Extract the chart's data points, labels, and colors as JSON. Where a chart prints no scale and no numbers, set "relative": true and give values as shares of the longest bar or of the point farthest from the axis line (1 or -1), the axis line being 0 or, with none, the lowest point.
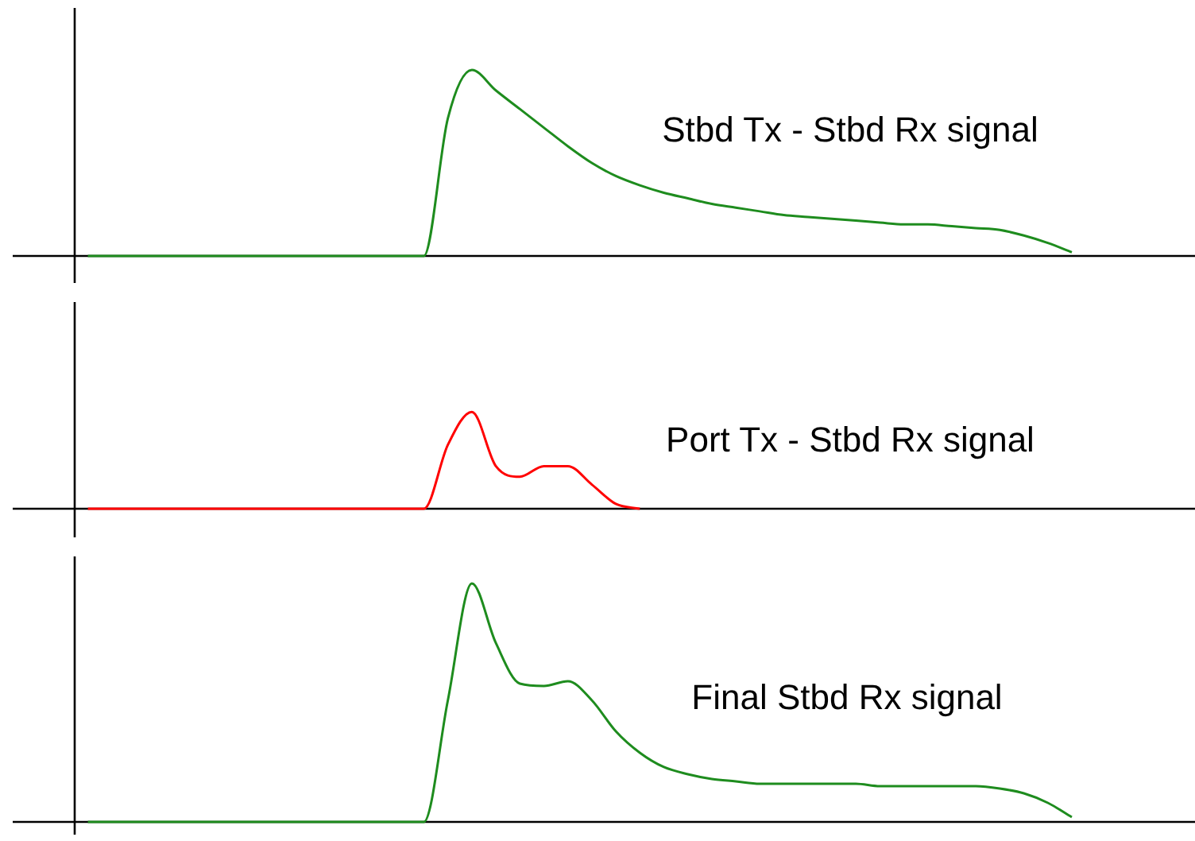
{
  "chart_data": [
    {
      "type": "line",
      "relative": true,
      "annotations": [
        "Stbd Tx - Stbd Rx signal"
      ],
      "categories": [
        null,
        null,
        null,
        null,
        null,
        null,
        null,
        null,
        null,
        null,
        null,
        null,
        null,
        null,
        null,
        null,
        null,
        null,
        null,
        null,
        null,
        null,
        null,
        null,
        null,
        null,
        null,
        null,
        null,
        null,
        null,
        null,
        null,
        null,
        null,
        null,
        null,
        null,
        null,
        null,
        null,
        null,
        null,
        null,
        null,
        null,
        null,
        null,
        null,
        null
      ],
      "series": [
        {
          "color": "#1e8c1e",
          "values": [
            null,
            null,
            null,
            0,
            0,
            0,
            0,
            0,
            0,
            0,
            0,
            0,
            0,
            0,
            0,
            0,
            0,
            0,
            0.74,
            1,
            0.89,
            0.79,
            0.69,
            0.59,
            0.5,
            0.43,
            0.38,
            0.34,
            0.31,
            0.28,
            0.26,
            0.24,
            0.22,
            0.21,
            0.2,
            0.19,
            0.18,
            0.17,
            0.17,
            0.16,
            0.15,
            0.14,
            0.11,
            0.07,
            0.02,
            null,
            null,
            null,
            null,
            null
          ]
        }
      ]
    },
    {
      "type": "line",
      "relative": true,
      "annotations": [
        "Port Tx - Stbd Rx signal"
      ],
      "categories": [
        null,
        null,
        null,
        null,
        null,
        null,
        null,
        null,
        null,
        null,
        null,
        null,
        null,
        null,
        null,
        null,
        null,
        null,
        null,
        null,
        null,
        null,
        null,
        null,
        null,
        null,
        null,
        null,
        null,
        null,
        null,
        null,
        null,
        null,
        null,
        null,
        null,
        null,
        null,
        null,
        null,
        null,
        null,
        null,
        null,
        null,
        null,
        null,
        null,
        null
      ],
      "series": [
        {
          "color": "#ff0000",
          "values": [
            null,
            null,
            null,
            0,
            0,
            0,
            0,
            0,
            0,
            0,
            0,
            0,
            0,
            0,
            0,
            0,
            0,
            0,
            0.66,
            1,
            0.44,
            0.33,
            0.44,
            0.44,
            0.25,
            0.05,
            0,
            null,
            null,
            null,
            null,
            null,
            null,
            null,
            null,
            null,
            null,
            null,
            null,
            null,
            null,
            null,
            null,
            null,
            null,
            null,
            null,
            null,
            null,
            null
          ]
        }
      ]
    },
    {
      "type": "line",
      "relative": true,
      "annotations": [
        "Final Stbd Rx signal"
      ],
      "categories": [
        null,
        null,
        null,
        null,
        null,
        null,
        null,
        null,
        null,
        null,
        null,
        null,
        null,
        null,
        null,
        null,
        null,
        null,
        null,
        null,
        null,
        null,
        null,
        null,
        null,
        null,
        null,
        null,
        null,
        null,
        null,
        null,
        null,
        null,
        null,
        null,
        null,
        null,
        null,
        null,
        null,
        null,
        null,
        null,
        null,
        null,
        null,
        null,
        null,
        null
      ],
      "series": [
        {
          "color": "#1e8c1e",
          "values": [
            null,
            null,
            null,
            0,
            0,
            0,
            0,
            0,
            0,
            0,
            0,
            0,
            0,
            0,
            0,
            0,
            0,
            0,
            0.51,
            1,
            0.75,
            0.58,
            0.57,
            0.59,
            0.51,
            0.38,
            0.29,
            0.23,
            0.2,
            0.18,
            0.17,
            0.16,
            0.16,
            0.16,
            0.16,
            0.16,
            0.15,
            0.15,
            0.15,
            0.15,
            0.15,
            0.14,
            0.12,
            0.08,
            0.02,
            null,
            null,
            null,
            null,
            null
          ]
        }
      ]
    }
  ]
}
